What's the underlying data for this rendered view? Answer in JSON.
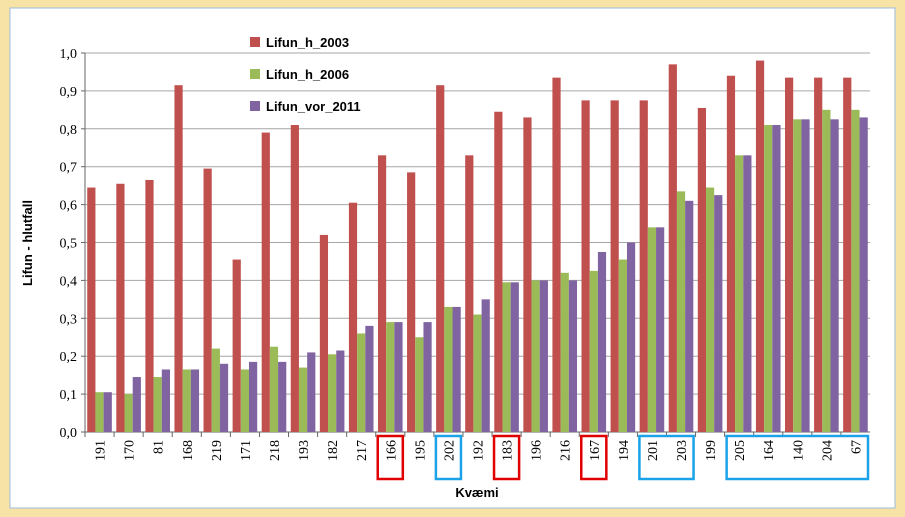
{
  "chart_data": {
    "type": "bar",
    "y_label": "Lifun - hlutfall",
    "x_label": "Kvæmi",
    "categories": [
      "191",
      "170",
      "81",
      "168",
      "219",
      "171",
      "218",
      "193",
      "182",
      "217",
      "166",
      "195",
      "202",
      "192",
      "183",
      "196",
      "216",
      "167",
      "194",
      "201",
      "203",
      "199",
      "205",
      "164",
      "140",
      "204",
      "67"
    ],
    "series": [
      {
        "name": "Lifun_h_2003",
        "color": "#c0504d",
        "values": [
          0.645,
          0.655,
          0.665,
          0.915,
          0.695,
          0.455,
          0.79,
          0.81,
          0.52,
          0.605,
          0.73,
          0.685,
          0.915,
          0.73,
          0.845,
          0.83,
          0.935,
          0.875,
          0.875,
          0.875,
          0.97,
          0.855,
          0.94,
          0.98,
          0.935,
          0.935,
          0.935
        ]
      },
      {
        "name": "Lifun_h_2006",
        "color": "#9bbb59",
        "values": [
          0.105,
          0.1,
          0.145,
          0.165,
          0.22,
          0.165,
          0.225,
          0.17,
          0.205,
          0.26,
          0.29,
          0.25,
          0.33,
          0.31,
          0.395,
          0.4,
          0.42,
          0.425,
          0.455,
          0.54,
          0.635,
          0.645,
          0.73,
          0.81,
          0.825,
          0.85,
          0.85
        ]
      },
      {
        "name": "Lifun_vor_2011",
        "color": "#8064a2",
        "values": [
          0.105,
          0.145,
          0.165,
          0.165,
          0.18,
          0.185,
          0.185,
          0.21,
          0.215,
          0.28,
          0.29,
          0.29,
          0.33,
          0.35,
          0.395,
          0.4,
          0.4,
          0.475,
          0.5,
          0.54,
          0.61,
          0.625,
          0.73,
          0.81,
          0.825,
          0.825,
          0.83
        ]
      }
    ],
    "ylim": [
      0,
      1
    ],
    "yticks": [
      {
        "value": 0,
        "label": "0,0"
      },
      {
        "value": 0.1,
        "label": "0,1"
      },
      {
        "value": 0.2,
        "label": "0,2"
      },
      {
        "value": 0.3,
        "label": "0,3"
      },
      {
        "value": 0.4,
        "label": "0,4"
      },
      {
        "value": 0.5,
        "label": "0,5"
      },
      {
        "value": 0.6,
        "label": "0,6"
      },
      {
        "value": 0.7,
        "label": "0,7"
      },
      {
        "value": 0.8,
        "label": "0,8"
      },
      {
        "value": 0.9,
        "label": "0,9"
      },
      {
        "value": 1,
        "label": "1,0"
      }
    ],
    "grid": true
  }
}
